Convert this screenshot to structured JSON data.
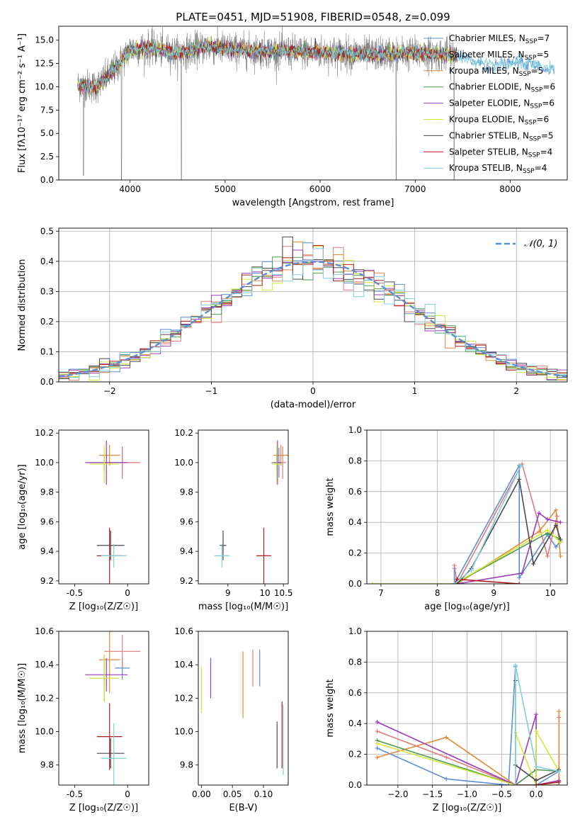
{
  "figure": {
    "title": "PLATE=0451, MJD=51908, FIBERID=0548, z=0.099"
  },
  "chart_data": [
    {
      "id": "spectrum",
      "type": "line",
      "xlabel": "wavelength [Angstrom, rest frame]",
      "ylabel": "Flux [fλ10⁻¹⁷ erg cm⁻² s⁻¹ A⁻¹]",
      "xlim": [
        3250,
        8600
      ],
      "ylim": [
        0,
        16.5
      ],
      "xticks": [
        4000,
        5000,
        6000,
        7000,
        8000
      ],
      "yticks": [
        0.0,
        2.5,
        5.0,
        7.5,
        10.0,
        12.5,
        15.0
      ],
      "legend_position": "right",
      "observed_range": [
        3450,
        7430
      ],
      "model_range": [
        3450,
        8470
      ],
      "continuum_points": [
        [
          3450,
          10.2
        ],
        [
          3650,
          10.0
        ],
        [
          3850,
          12.0
        ],
        [
          4000,
          14.0
        ],
        [
          4200,
          14.2
        ],
        [
          4500,
          13.6
        ],
        [
          4800,
          14.3
        ],
        [
          5200,
          13.9
        ],
        [
          5600,
          13.8
        ],
        [
          6000,
          13.7
        ],
        [
          6500,
          13.5
        ],
        [
          7000,
          13.6
        ],
        [
          7400,
          13.4
        ],
        [
          7800,
          12.2
        ],
        [
          8100,
          12.6
        ],
        [
          8470,
          11.8
        ]
      ],
      "dips": [
        [
          3510,
          0.5
        ],
        [
          3910,
          0
        ],
        [
          4540,
          0
        ],
        [
          6800,
          0
        ],
        [
          7410,
          0
        ]
      ],
      "series": [
        {
          "name": "Chabrier MILES, N_SSP=7",
          "label_main": "Chabrier MILES, N",
          "label_sub": "SSP",
          "label_tail": "=7",
          "color": "#5b8fd6"
        },
        {
          "name": "Salpeter MILES, N_SSP=5",
          "label_main": "Salpeter MILES, N",
          "label_sub": "SSP",
          "label_tail": "=5",
          "color": "#e07b7b"
        },
        {
          "name": "Kroupa MILES, N_SSP=5",
          "label_main": "Kroupa MILES, N",
          "label_sub": "SSP",
          "label_tail": "=5",
          "color": "#e08a3c"
        },
        {
          "name": "Chabrier ELODIE, N_SSP=6",
          "label_main": "Chabrier ELODIE, N",
          "label_sub": "SSP",
          "label_tail": "=6",
          "color": "#4e9a4e"
        },
        {
          "name": "Salpeter ELODIE, N_SSP=6",
          "label_main": "Salpeter ELODIE, N",
          "label_sub": "SSP",
          "label_tail": "=6",
          "color": "#9b3db8"
        },
        {
          "name": "Kroupa ELODIE, N_SSP=6",
          "label_main": "Kroupa ELODIE, N",
          "label_sub": "SSP",
          "label_tail": "=6",
          "color": "#d4e63a"
        },
        {
          "name": "Chabrier STELIB, N_SSP=5",
          "label_main": "Chabrier STELIB, N",
          "label_sub": "SSP",
          "label_tail": "=5",
          "color": "#4a4a4a"
        },
        {
          "name": "Salpeter STELIB, N_SSP=4",
          "label_main": "Salpeter STELIB, N",
          "label_sub": "SSP",
          "label_tail": "=4",
          "color": "#b01c1c"
        },
        {
          "name": "Kroupa STELIB, N_SSP=4",
          "label_main": "Kroupa STELIB, N",
          "label_sub": "SSP",
          "label_tail": "=4",
          "color": "#7fd0dc"
        }
      ]
    },
    {
      "id": "residuals",
      "type": "histogram",
      "xlabel": "(data-model)/error",
      "ylabel": "Normed distribution",
      "xlim": [
        -2.5,
        2.5
      ],
      "ylim": [
        0,
        0.51
      ],
      "xticks": [
        -2,
        -1,
        0,
        1,
        2
      ],
      "xticklabels": [
        "−2",
        "−1",
        "0",
        "1",
        "2"
      ],
      "yticks": [
        0.0,
        0.1,
        0.2,
        0.3,
        0.4,
        0.5
      ],
      "bin_width": 0.1,
      "grid": true,
      "reference": {
        "label": "𝒩(0, 1)",
        "color": "#5b8fd6",
        "style": "dashed"
      },
      "legend_position": "top-right"
    },
    {
      "id": "age_vs_z",
      "type": "errorbar",
      "xlabel": "Z [log₁₀(Z/Z☉)]",
      "ylabel": "age  [log₁₀(age/yr)]",
      "xlim": [
        -0.65,
        0.2
      ],
      "ylim": [
        9.18,
        10.22
      ],
      "xticks": [
        -0.5,
        0.0
      ],
      "yticks": [
        9.2,
        9.4,
        9.6,
        9.8,
        10.0,
        10.2
      ],
      "points": [
        {
          "x": -0.05,
          "xerr": 0.07,
          "y": 10.0,
          "yerr": 0.1,
          "color": "#5b8fd6"
        },
        {
          "x": -0.05,
          "xerr": 0.17,
          "y": 10.0,
          "yerr": 0.11,
          "color": "#e07b7b"
        },
        {
          "x": -0.17,
          "xerr": 0.1,
          "y": 10.05,
          "yerr": 0.07,
          "color": "#e08a3c"
        },
        {
          "x": -0.22,
          "xerr": 0.14,
          "y": 10.0,
          "yerr": 0.06,
          "color": "#4e9a4e"
        },
        {
          "x": -0.2,
          "xerr": 0.2,
          "y": 10.0,
          "yerr": 0.15,
          "color": "#9b3db8"
        },
        {
          "x": -0.22,
          "xerr": 0.14,
          "y": 9.99,
          "yerr": 0.13,
          "color": "#d4e63a"
        },
        {
          "x": -0.16,
          "xerr": 0.13,
          "y": 9.44,
          "yerr": 0.1,
          "color": "#4a4a4a"
        },
        {
          "x": -0.17,
          "xerr": 0.12,
          "y": 9.37,
          "yerr": 0.19,
          "color": "#b01c1c"
        },
        {
          "x": -0.13,
          "xerr": 0.12,
          "y": 9.37,
          "yerr": 0.08,
          "color": "#7fd0dc"
        }
      ]
    },
    {
      "id": "age_vs_mass",
      "type": "errorbar",
      "xlabel": "mass [log₁₀(M/M☉)]",
      "ylabel": "",
      "xlim": [
        8.2,
        10.63
      ],
      "ylim": [
        9.18,
        10.22
      ],
      "xticks": [
        9.0,
        10.0,
        10.5
      ],
      "yticks": [
        9.2,
        9.4,
        9.6,
        9.8,
        10.0,
        10.2
      ],
      "points": [
        {
          "x": 10.38,
          "xerr": 0.07,
          "y": 10.0,
          "yerr": 0.1,
          "color": "#5b8fd6"
        },
        {
          "x": 10.48,
          "xerr": 0.1,
          "y": 10.0,
          "yerr": 0.11,
          "color": "#e07b7b"
        },
        {
          "x": 10.43,
          "xerr": 0.2,
          "y": 10.05,
          "yerr": 0.07,
          "color": "#e08a3c"
        },
        {
          "x": 10.32,
          "xerr": 0.14,
          "y": 10.0,
          "yerr": 0.06,
          "color": "#4e9a4e"
        },
        {
          "x": 10.34,
          "xerr": 0.1,
          "y": 10.0,
          "yerr": 0.15,
          "color": "#9b3db8"
        },
        {
          "x": 10.32,
          "xerr": 0.14,
          "y": 9.99,
          "yerr": 0.13,
          "color": "#d4e63a"
        },
        {
          "x": 8.87,
          "xerr": 0.09,
          "y": 9.44,
          "yerr": 0.1,
          "color": "#4a4a4a"
        },
        {
          "x": 9.97,
          "xerr": 0.2,
          "y": 9.37,
          "yerr": 0.19,
          "color": "#b01c1c"
        },
        {
          "x": 8.84,
          "xerr": 0.21,
          "y": 9.37,
          "yerr": 0.08,
          "color": "#7fd0dc"
        }
      ]
    },
    {
      "id": "weight_vs_age",
      "type": "line",
      "xlabel": "age  [log₁₀(age/yr)]",
      "ylabel": "mass weight",
      "xlim": [
        6.75,
        10.3
      ],
      "ylim": [
        0,
        1.0
      ],
      "xticks": [
        7,
        8,
        9,
        10
      ],
      "yticks": [
        0.0,
        0.2,
        0.4,
        0.6,
        0.8,
        1.0
      ],
      "grid": true,
      "series": [
        {
          "color": "#5b8fd6",
          "x": [
            8.3,
            8.3,
            9.45,
            9.45,
            9.95,
            10.1,
            10.18
          ],
          "y": [
            0.1,
            0.0,
            0.77,
            0.04,
            0.32,
            0.24,
            0.28
          ]
        },
        {
          "color": "#e07b7b",
          "x": [
            8.3,
            8.35,
            9.5,
            9.95,
            10.12
          ],
          "y": [
            0.12,
            0.0,
            0.78,
            0.18,
            0.44
          ]
        },
        {
          "color": "#e08a3c",
          "x": [
            8.35,
            9.8,
            10.1,
            10.18
          ],
          "y": [
            0.0,
            0.34,
            0.48,
            0.18
          ]
        },
        {
          "color": "#4e9a4e",
          "x": [
            8.3,
            9.95,
            10.18
          ],
          "y": [
            0.0,
            0.33,
            0.29
          ]
        },
        {
          "color": "#9b3db8",
          "x": [
            8.35,
            9.5,
            9.8,
            9.95,
            10.18
          ],
          "y": [
            0.0,
            0.07,
            0.46,
            0.42,
            0.4
          ]
        },
        {
          "color": "#d4e63a",
          "x": [
            6.85,
            8.3,
            9.95,
            10.18
          ],
          "y": [
            0.0,
            0.0,
            0.35,
            0.27
          ]
        },
        {
          "color": "#4a4a4a",
          "x": [
            8.35,
            8.6,
            9.45,
            9.7,
            10.1,
            10.18
          ],
          "y": [
            0.0,
            0.1,
            0.68,
            0.13,
            0.38,
            0.29
          ]
        },
        {
          "color": "#b01c1c",
          "x": [
            8.3,
            8.35,
            9.45
          ],
          "y": [
            0.0,
            0.03,
            0.0
          ]
        },
        {
          "color": "#7fd0dc",
          "x": [
            8.3,
            8.6,
            9.48
          ],
          "y": [
            0.0,
            0.09,
            0.77
          ]
        }
      ]
    },
    {
      "id": "mass_vs_z",
      "type": "errorbar",
      "xlabel": "Z [log₁₀(Z/Z☉)]",
      "ylabel": "mass [log₁₀(M/M☉)]",
      "xlim": [
        -0.65,
        0.2
      ],
      "ylim": [
        9.68,
        10.6
      ],
      "xticks": [
        -0.5,
        0.0
      ],
      "yticks": [
        9.8,
        10.0,
        10.2,
        10.4,
        10.6
      ],
      "points": [
        {
          "x": -0.05,
          "xerr": 0.07,
          "y": 10.38,
          "yerr": 0.07,
          "color": "#5b8fd6"
        },
        {
          "x": -0.05,
          "xerr": 0.17,
          "y": 10.48,
          "yerr": 0.1,
          "color": "#e07b7b"
        },
        {
          "x": -0.17,
          "xerr": 0.1,
          "y": 10.43,
          "yerr": 0.2,
          "color": "#e08a3c"
        },
        {
          "x": -0.22,
          "xerr": 0.14,
          "y": 10.32,
          "yerr": 0.14,
          "color": "#4e9a4e"
        },
        {
          "x": -0.2,
          "xerr": 0.2,
          "y": 10.34,
          "yerr": 0.1,
          "color": "#9b3db8"
        },
        {
          "x": -0.22,
          "xerr": 0.14,
          "y": 10.32,
          "yerr": 0.14,
          "color": "#d4e63a"
        },
        {
          "x": -0.16,
          "xerr": 0.13,
          "y": 9.87,
          "yerr": 0.09,
          "color": "#4a4a4a"
        },
        {
          "x": -0.17,
          "xerr": 0.12,
          "y": 9.97,
          "yerr": 0.2,
          "color": "#b01c1c"
        },
        {
          "x": -0.13,
          "xerr": 0.12,
          "y": 9.84,
          "yerr": 0.21,
          "color": "#7fd0dc"
        }
      ]
    },
    {
      "id": "mass_vs_ebv",
      "type": "errorbar",
      "xlabel": "E(B-V)",
      "ylabel": "",
      "xlim": [
        -0.005,
        0.14
      ],
      "ylim": [
        9.68,
        10.6
      ],
      "xticks": [
        0.0,
        0.05,
        0.1
      ],
      "xticklabels": [
        "0.00",
        "0.05",
        "0.10"
      ],
      "yticks": [
        9.8,
        10.0,
        10.2,
        10.4,
        10.6
      ],
      "points": [
        {
          "x": 0.094,
          "xerr": 0,
          "y": 10.38,
          "yerr": 0.11,
          "color": "#5b8fd6"
        },
        {
          "x": 0.083,
          "xerr": 0,
          "y": 10.38,
          "yerr": 0.11,
          "color": "#e07b7b"
        },
        {
          "x": 0.067,
          "xerr": 0,
          "y": 10.28,
          "yerr": 0.2,
          "color": "#e08a3c"
        },
        {
          "x": 0.015,
          "xerr": 0,
          "y": 10.32,
          "yerr": 0.12,
          "color": "#9b3db8"
        },
        {
          "x": 0.0,
          "xerr": 0,
          "y": 10.25,
          "yerr": 0.14,
          "color": "#d4e63a"
        },
        {
          "x": 0.122,
          "xerr": 0,
          "y": 9.92,
          "yerr": 0.14,
          "color": "#4a4a4a"
        },
        {
          "x": 0.13,
          "xerr": 0,
          "y": 9.98,
          "yerr": 0.2,
          "color": "#b01c1c"
        },
        {
          "x": 0.132,
          "xerr": 0,
          "y": 9.95,
          "yerr": 0.21,
          "color": "#7fd0dc"
        }
      ]
    },
    {
      "id": "weight_vs_z",
      "type": "line",
      "xlabel": "Z [log₁₀(Z/Z☉)]",
      "ylabel": "mass weight",
      "xlim": [
        -2.45,
        0.45
      ],
      "ylim": [
        0,
        1.0
      ],
      "xticks": [
        -2.0,
        -1.5,
        -1.0,
        -0.5,
        0.0
      ],
      "xticklabels": [
        "−2.0",
        "−1.5",
        "−1.0",
        "−0.5",
        "0.0"
      ],
      "yticks": [
        0.0,
        0.2,
        0.4,
        0.6,
        0.8,
        1.0
      ],
      "grid": true,
      "series": [
        {
          "color": "#5b8fd6",
          "x": [
            -2.3,
            -1.3,
            -0.4,
            -0.3,
            -0.3,
            0.0,
            0.0,
            0.33
          ],
          "y": [
            0.24,
            0.04,
            0.0,
            0.77,
            0.0,
            0.1,
            0.0,
            0.09
          ]
        },
        {
          "color": "#e07b7b",
          "x": [
            -2.3,
            -1.3,
            -0.3,
            0.0,
            0.33,
            0.33
          ],
          "y": [
            0.35,
            0.18,
            0.0,
            0.0,
            0.02,
            0.44
          ]
        },
        {
          "color": "#e08a3c",
          "x": [
            -2.3,
            -1.3,
            -0.3,
            0.0,
            0.33,
            0.33
          ],
          "y": [
            0.18,
            0.31,
            0.0,
            0.0,
            0.0,
            0.48
          ]
        },
        {
          "color": "#4e9a4e",
          "x": [
            -2.3,
            -0.3,
            0.0,
            0.33
          ],
          "y": [
            0.29,
            0.0,
            0.1,
            0.09
          ]
        },
        {
          "color": "#9b3db8",
          "x": [
            -2.3,
            -0.3,
            0.0,
            0.0,
            0.33
          ],
          "y": [
            0.41,
            0.0,
            0.46,
            0.0,
            0.03
          ]
        },
        {
          "color": "#d4e63a",
          "x": [
            -2.3,
            -0.3,
            -0.3,
            0.0,
            0.0,
            0.33
          ],
          "y": [
            0.27,
            0.0,
            0.34,
            0.0,
            0.35,
            0.09
          ]
        },
        {
          "color": "#4a4a4a",
          "x": [
            -0.3,
            -0.3,
            0.0,
            0.33
          ],
          "y": [
            0.68,
            0.13,
            0.03,
            0.1
          ]
        },
        {
          "color": "#b01c1c",
          "x": [
            -0.3,
            0.0,
            0.33
          ],
          "y": [
            0.0,
            0.0,
            0.02
          ]
        },
        {
          "color": "#7fd0dc",
          "x": [
            -0.3,
            -0.3,
            0.0,
            0.33
          ],
          "y": [
            0.0,
            0.78,
            0.12,
            0.09
          ]
        }
      ]
    }
  ]
}
